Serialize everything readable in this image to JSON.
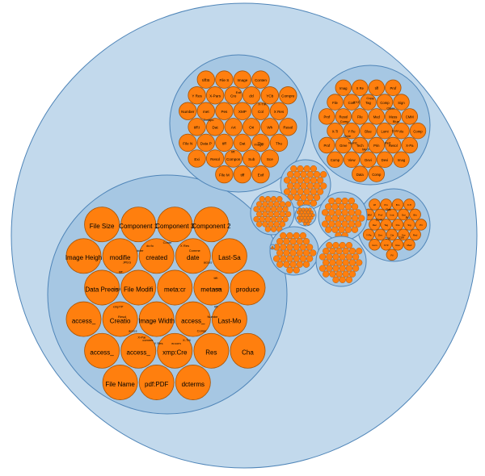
{
  "colors": {
    "root_fill": "#c2d9ec",
    "group_fill": "#a6c7e3",
    "stroke": "#4f85b8",
    "leaf_fill": "#ff7f0e",
    "leaf_stroke": "#a65306",
    "label": "#000000"
  },
  "diagram": {
    "type": "circle-packing",
    "groups": [
      {
        "name": "group-large-left",
        "leaves": [
          "File Size",
          "Component 1",
          "Component 3",
          "Component 2",
          "Image Heigh",
          "modifie",
          "created",
          "date",
          "Last-Sa",
          "Data Precis",
          "File Modifi",
          "meta:cr",
          "metasa",
          "produce",
          "access_",
          "Creatio",
          "Image Width",
          "access_",
          "Last-Mo",
          "access_",
          "access_",
          "xmp:Cre",
          "Res",
          "Cha",
          "File Name",
          "pdf:PDF",
          "dcterms",
          "comme",
          "dc:form",
          "Number of C",
          "xmpTPg",
          "Comme",
          "w:com",
          "JPEG",
          "pdf:enc",
          "access_",
          "Content-Type",
          "Compression",
          "access_",
          "access_",
          "Y Resolutio",
          "dcterms",
          "tiff:ImageL",
          "Resolution",
          "X Resolutio",
          "X-TIKA:parse_",
          "tiff:BitsPe",
          "tiff:ImageW",
          "X-Parsed-By"
        ]
      },
      {
        "name": "group-top-middle",
        "leaves": [
          "tiff:B",
          "File S",
          "Image",
          "Conten",
          "Y Res",
          "X-Pars",
          "Cre",
          "dcl",
          "YCb",
          "Compre",
          "Number",
          "met",
          "Pes",
          "XMP",
          "Col",
          "X Res",
          "tiff:I",
          "Dat",
          "Art",
          "Ori",
          "Wh",
          "Resol",
          "File N",
          "Data P",
          "tiff",
          "Dat",
          "Thu",
          "Thu",
          "Exi",
          "Resol",
          "Compon",
          "Sub",
          "Sce",
          "File M",
          "tiff",
          "Exif",
          "Exif",
          "Image",
          "Compon",
          "X-TIKA",
          "tiff:I"
        ]
      },
      {
        "name": "group-top-right",
        "leaves": [
          "Imag",
          "X Re",
          "tiff",
          "Prof",
          "File",
          "Cont",
          "Tag",
          "Comp",
          "Sign",
          "Prof",
          "Resol",
          "File",
          "Med",
          "Mess",
          "CMM",
          "X-Ti",
          "Y Re",
          "Blue",
          "Lumi",
          "Vie",
          "Comp",
          "Prof",
          "Gree",
          "Tech",
          "Prin",
          "Resol",
          "X-Pa",
          "Comp",
          "View",
          "Devi",
          "Devi",
          "Imag",
          "Data",
          "Comp",
          "Blue",
          "Numb",
          "Copy",
          "Red",
          "Comp",
          "Class",
          "Medi",
          "XYZ",
          "Colo",
          "Gree"
        ]
      },
      {
        "name": "group-right-small",
        "leaves": [
          "tiff",
          "Pro",
          "Bro",
          "X-Ti",
          "CMM",
          "Prof",
          "Ima",
          "Dat",
          "Blu",
          "Rec",
          "Tag",
          "File",
          "Sig",
          "Pri",
          "Y-Pa",
          "Dev",
          "Cla",
          "Gre",
          "Red",
          "Com",
          "XYZ",
          "Res",
          "Med",
          "Fil",
          "Con",
          "Com",
          "Pri",
          "Col",
          "Dat"
        ]
      },
      {
        "name": "cluster-1",
        "leaves": []
      },
      {
        "name": "cluster-2",
        "leaves": []
      },
      {
        "name": "cluster-3",
        "leaves": []
      },
      {
        "name": "cluster-4",
        "leaves": []
      },
      {
        "name": "cluster-5",
        "leaves": []
      },
      {
        "name": "cluster-6",
        "leaves": []
      },
      {
        "name": "cluster-7",
        "leaves": []
      }
    ]
  }
}
